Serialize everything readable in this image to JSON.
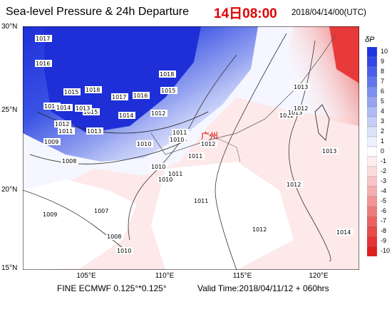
{
  "title": "Sea-level Pressure & 24h Departure",
  "time_title": "14日08:00",
  "init_time": "2018/04/14/00(UTC)",
  "footer_left": "FINE ECMWF 0.125°*0.125°",
  "footer_right": "Valid Time:2018/04/11/12 + 060hrs",
  "city_label": "广州",
  "lat_ticks": [
    "30°N",
    "25°N",
    "20°N",
    "15°N"
  ],
  "lon_ticks": [
    "105°E",
    "110°E",
    "115°E",
    "120°E"
  ],
  "colorbar": {
    "label": "δP",
    "values": [
      "10",
      "9",
      "8",
      "7",
      "6",
      "5",
      "4",
      "3",
      "2",
      "1",
      "0",
      "-1",
      "-2",
      "-3",
      "-4",
      "-5",
      "-6",
      "-7",
      "-8",
      "-9",
      "-10"
    ],
    "colors": [
      "#2033e0",
      "#3347e6",
      "#4a5fe9",
      "#6176ec",
      "#7b8df0",
      "#95a4f2",
      "#afbaf5",
      "#c6cef8",
      "#dde2fb",
      "#eef0fd",
      "#ffffff",
      "#fdeeee",
      "#fbdcdc",
      "#f8c6c6",
      "#f5afaf",
      "#f29595",
      "#f07b7b",
      "#ec6262",
      "#e94a4a",
      "#e63333",
      "#e01f1f"
    ]
  },
  "contour_labels": [
    "1017",
    "1016",
    "1015",
    "1014",
    "1018",
    "1013",
    "1017",
    "1016",
    "1015",
    "1014",
    "1012",
    "1018",
    "1015",
    "1014",
    "1013",
    "1012",
    "1011",
    "1010",
    "1011",
    "1010",
    "1009",
    "1008",
    "1007",
    "1008",
    "1009",
    "1010",
    "1011",
    "1012",
    "1012",
    "1013",
    "1012",
    "1013",
    "1011",
    "1010",
    "1010",
    "1011",
    "1012",
    "1012",
    "1013",
    "1014"
  ]
}
